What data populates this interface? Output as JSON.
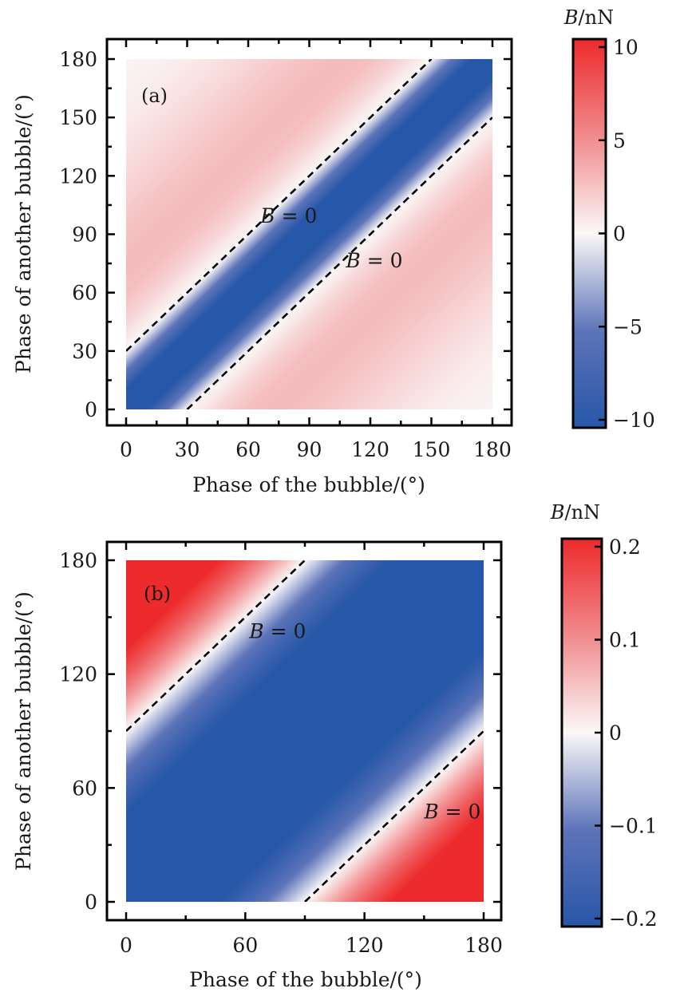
{
  "chart_data": [
    {
      "type": "heatmap",
      "panel_label": "(a)",
      "xlabel": "Phase of the bubble/(°)",
      "ylabel": "Phase of another bubble/(°)",
      "xlim": [
        0,
        180
      ],
      "ylim": [
        0,
        180
      ],
      "xticks": [
        0,
        30,
        60,
        90,
        120,
        150,
        180
      ],
      "yticks": [
        0,
        30,
        60,
        90,
        120,
        150,
        180
      ],
      "minor_tick_step": 15,
      "field_description": "B depends on phase difference d = y - x; strongly negative (blue, saturated) band along diagonal, B=0 at |d|=30, light positive (pink) band peaking near |d|≈70, fading toward 0 at |d|=180",
      "profile_abs_phase_diff": [
        0,
        10,
        20,
        30,
        45,
        60,
        75,
        90,
        105,
        120,
        135,
        150,
        165,
        180
      ],
      "profile_B": [
        -12,
        -10,
        -5,
        0,
        1.6,
        2.6,
        2.8,
        2.5,
        2.0,
        1.5,
        1.0,
        0.6,
        0.35,
        0.2
      ],
      "contours": [
        {
          "level": 0,
          "label": "B = 0",
          "line": "y = x + 30",
          "style": "dashed"
        },
        {
          "level": 0,
          "label": "B = 0",
          "line": "y = x - 30",
          "style": "dashed"
        }
      ],
      "annotations": [
        {
          "text_italic": "B",
          "text_rest": " = 0",
          "x": 66,
          "y": 96
        },
        {
          "text_italic": "B",
          "text_rest": " = 0",
          "x": 108,
          "y": 73
        }
      ],
      "colorbar": {
        "title_italic": "B",
        "title_rest": "/nN",
        "range": [
          -10,
          10
        ],
        "ticks": [
          10,
          5,
          0,
          -5,
          -10
        ],
        "tick_labels": [
          "10",
          "5",
          "0",
          "−5",
          "−10"
        ],
        "colormap": "blue-white-red",
        "color_low": "#2757a8",
        "color_mid": "#fbf8f8",
        "color_high": "#ed2a2c"
      }
    },
    {
      "type": "heatmap",
      "panel_label": "(b)",
      "xlabel": "Phase of the bubble/(°)",
      "ylabel": "Phase of another bubble/(°)",
      "xlim": [
        0,
        180
      ],
      "ylim": [
        0,
        180
      ],
      "xticks": [
        0,
        60,
        120,
        180
      ],
      "yticks": [
        0,
        60,
        120,
        180
      ],
      "minor_tick_step": 30,
      "field_description": "B ≈ -A·cos(y - x); negative (blue, saturated) broad band along diagonal, B=0 at |d|=90, positive (red) in the top-left and bottom-right corners",
      "profile_abs_phase_diff": [
        0,
        30,
        60,
        75,
        90,
        105,
        120,
        150,
        180
      ],
      "profile_B": [
        -0.3,
        -0.26,
        -0.15,
        -0.078,
        0,
        0.078,
        0.15,
        0.26,
        0.3
      ],
      "contours": [
        {
          "level": 0,
          "label": "B = 0",
          "line": "y = x + 90",
          "style": "dashed"
        },
        {
          "level": 0,
          "label": "B = 0",
          "line": "y = x - 90",
          "style": "dashed"
        }
      ],
      "annotations": [
        {
          "text_italic": "B",
          "text_rest": " = 0",
          "x": 62,
          "y": 139
        },
        {
          "text_italic": "B",
          "text_rest": " = 0",
          "x": 150,
          "y": 44
        }
      ],
      "colorbar": {
        "title_italic": "B",
        "title_rest": "/nN",
        "range": [
          -0.2,
          0.2
        ],
        "ticks": [
          0.2,
          0.1,
          0,
          -0.1,
          -0.2
        ],
        "tick_labels": [
          "0.2",
          "0.1",
          "0",
          "−0.1",
          "−0.2"
        ],
        "colormap": "blue-white-red",
        "color_low": "#2757a8",
        "color_mid": "#fbf8f8",
        "color_high": "#ed2a2c"
      }
    }
  ]
}
